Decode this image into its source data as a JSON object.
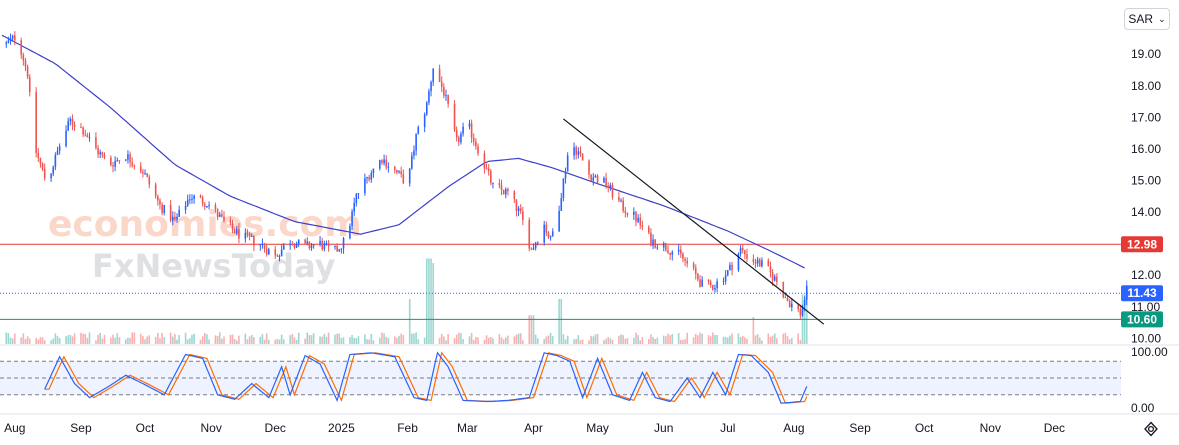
{
  "ui": {
    "currency": "SAR",
    "watermark_line1": "economies.com",
    "watermark_line2": "FxNewsToday",
    "colors": {
      "up": "#2962ff",
      "down": "#ef5350",
      "ma": "#3b3fc9",
      "resistance": "#e53935",
      "support": "#089981",
      "trendline": "#131722",
      "stoch_k": "#2962ff",
      "stoch_d": "#ff6d00"
    }
  },
  "chart_data": {
    "type": "candlestick",
    "x_ticks": [
      "Aug",
      "Sep",
      "Oct",
      "Nov",
      "Dec",
      "2025",
      "Feb",
      "Mar",
      "Apr",
      "May",
      "Jun",
      "Jul",
      "Aug",
      "Sep",
      "Oct",
      "Nov",
      "Dec"
    ],
    "y_ticks": [
      "19.00",
      "18.00",
      "17.00",
      "16.00",
      "15.00",
      "14.00",
      "12.00",
      "11.00",
      "10.00"
    ],
    "ylim": [
      9.6,
      20.4
    ],
    "price_levels": [
      {
        "value": "12.98",
        "color": "#e53935",
        "style": "solid"
      },
      {
        "value": "11.43",
        "color": "#2962ff",
        "style": "dotted"
      },
      {
        "value": "10.60",
        "color": "#089981",
        "style": "solid"
      }
    ],
    "trendline": {
      "start_date": "2025-04-15",
      "start_price": 16.95,
      "end_date": "2025-08-15",
      "end_price": 10.45
    },
    "price_anchors": [
      [
        "2024-07-26",
        19.2
      ],
      [
        "2024-08-02",
        19.6
      ],
      [
        "2024-08-07",
        18.4
      ],
      [
        "2024-08-10",
        16.1
      ],
      [
        "2024-08-16",
        14.9
      ],
      [
        "2024-08-22",
        16.1
      ],
      [
        "2024-08-27",
        16.9
      ],
      [
        "2024-09-02",
        16.6
      ],
      [
        "2024-09-08",
        16.0
      ],
      [
        "2024-09-14",
        15.5
      ],
      [
        "2024-09-22",
        15.8
      ],
      [
        "2024-09-30",
        15.3
      ],
      [
        "2024-10-08",
        14.2
      ],
      [
        "2024-10-15",
        13.7
      ],
      [
        "2024-10-22",
        14.5
      ],
      [
        "2024-10-30",
        14.3
      ],
      [
        "2024-11-08",
        13.6
      ],
      [
        "2024-11-16",
        13.2
      ],
      [
        "2024-11-24",
        13.0
      ],
      [
        "2024-12-01",
        12.6
      ],
      [
        "2024-12-08",
        13.1
      ],
      [
        "2024-12-15",
        12.9
      ],
      [
        "2024-12-22",
        13.0
      ],
      [
        "2024-12-28",
        12.7
      ],
      [
        "2025-01-03",
        13.1
      ],
      [
        "2025-01-08",
        14.5
      ],
      [
        "2025-01-14",
        15.2
      ],
      [
        "2025-01-20",
        15.7
      ],
      [
        "2025-01-26",
        15.3
      ],
      [
        "2025-02-01",
        14.9
      ],
      [
        "2025-02-05",
        16.4
      ],
      [
        "2025-02-10",
        17.4
      ],
      [
        "2025-02-13",
        18.6
      ],
      [
        "2025-02-18",
        17.8
      ],
      [
        "2025-02-24",
        16.2
      ],
      [
        "2025-03-01",
        16.8
      ],
      [
        "2025-03-06",
        16.0
      ],
      [
        "2025-03-13",
        14.8
      ],
      [
        "2025-03-20",
        14.6
      ],
      [
        "2025-03-26",
        13.9
      ],
      [
        "2025-03-31",
        12.8
      ],
      [
        "2025-04-06",
        13.6
      ],
      [
        "2025-04-09",
        13.1
      ],
      [
        "2025-04-13",
        14.2
      ],
      [
        "2025-04-18",
        16.2
      ],
      [
        "2025-04-22",
        15.9
      ],
      [
        "2025-04-27",
        15.2
      ],
      [
        "2025-05-05",
        14.9
      ],
      [
        "2025-05-12",
        14.2
      ],
      [
        "2025-05-19",
        13.8
      ],
      [
        "2025-05-26",
        13.1
      ],
      [
        "2025-06-02",
        12.9
      ],
      [
        "2025-06-09",
        12.6
      ],
      [
        "2025-06-15",
        12.1
      ],
      [
        "2025-06-20",
        11.6
      ],
      [
        "2025-06-25",
        11.7
      ],
      [
        "2025-07-01",
        12.1
      ],
      [
        "2025-07-07",
        12.8
      ],
      [
        "2025-07-12",
        12.5
      ],
      [
        "2025-07-18",
        12.3
      ],
      [
        "2025-07-24",
        11.8
      ],
      [
        "2025-07-29",
        11.2
      ],
      [
        "2025-08-04",
        10.8
      ],
      [
        "2025-08-07",
        11.5
      ]
    ],
    "ma_anchors": [
      [
        "2024-07-26",
        19.6
      ],
      [
        "2024-08-20",
        18.7
      ],
      [
        "2024-09-15",
        17.3
      ],
      [
        "2024-10-15",
        15.5
      ],
      [
        "2024-11-10",
        14.5
      ],
      [
        "2024-12-10",
        13.7
      ],
      [
        "2025-01-10",
        13.3
      ],
      [
        "2025-01-28",
        13.6
      ],
      [
        "2025-02-20",
        14.8
      ],
      [
        "2025-03-10",
        15.6
      ],
      [
        "2025-03-25",
        15.7
      ],
      [
        "2025-04-10",
        15.4
      ],
      [
        "2025-05-01",
        14.9
      ],
      [
        "2025-06-01",
        14.2
      ],
      [
        "2025-07-01",
        13.4
      ],
      [
        "2025-07-20",
        12.8
      ],
      [
        "2025-08-07",
        12.2
      ]
    ],
    "volume_spikes": [
      [
        "2025-02-01",
        0.5
      ],
      [
        "2025-02-11",
        0.95
      ],
      [
        "2025-02-14",
        0.9
      ],
      [
        "2025-03-31",
        0.32
      ],
      [
        "2025-04-13",
        0.5
      ],
      [
        "2025-07-12",
        0.3
      ],
      [
        "2025-08-06",
        0.55
      ]
    ],
    "stochastic_ylim": [
      0,
      100
    ],
    "stochastic_levels": [
      80,
      50,
      20
    ],
    "stochastic_ticks": [
      "100.00",
      "0.00"
    ],
    "stochastic_anchors": [
      [
        "2024-08-15",
        30
      ],
      [
        "2024-08-22",
        88
      ],
      [
        "2024-08-29",
        40
      ],
      [
        "2024-09-05",
        15
      ],
      [
        "2024-09-14",
        35
      ],
      [
        "2024-09-22",
        55
      ],
      [
        "2024-09-30",
        40
      ],
      [
        "2024-10-10",
        20
      ],
      [
        "2024-10-20",
        92
      ],
      [
        "2024-10-28",
        85
      ],
      [
        "2024-11-04",
        20
      ],
      [
        "2024-11-12",
        12
      ],
      [
        "2024-11-20",
        40
      ],
      [
        "2024-11-28",
        15
      ],
      [
        "2024-12-04",
        70
      ],
      [
        "2024-12-08",
        20
      ],
      [
        "2024-12-15",
        90
      ],
      [
        "2024-12-22",
        75
      ],
      [
        "2024-12-30",
        10
      ],
      [
        "2025-01-05",
        92
      ],
      [
        "2025-01-15",
        95
      ],
      [
        "2025-01-26",
        88
      ],
      [
        "2025-02-04",
        15
      ],
      [
        "2025-02-10",
        10
      ],
      [
        "2025-02-15",
        95
      ],
      [
        "2025-02-20",
        70
      ],
      [
        "2025-02-27",
        10
      ],
      [
        "2025-03-10",
        8
      ],
      [
        "2025-03-20",
        10
      ],
      [
        "2025-03-30",
        15
      ],
      [
        "2025-04-06",
        95
      ],
      [
        "2025-04-12",
        90
      ],
      [
        "2025-04-18",
        80
      ],
      [
        "2025-04-24",
        15
      ],
      [
        "2025-05-01",
        85
      ],
      [
        "2025-05-08",
        20
      ],
      [
        "2025-05-16",
        10
      ],
      [
        "2025-05-22",
        60
      ],
      [
        "2025-05-28",
        15
      ],
      [
        "2025-06-04",
        8
      ],
      [
        "2025-06-12",
        50
      ],
      [
        "2025-06-18",
        15
      ],
      [
        "2025-06-24",
        60
      ],
      [
        "2025-06-30",
        20
      ],
      [
        "2025-07-06",
        92
      ],
      [
        "2025-07-12",
        90
      ],
      [
        "2025-07-20",
        60
      ],
      [
        "2025-07-26",
        5
      ],
      [
        "2025-08-04",
        8
      ],
      [
        "2025-08-07",
        35
      ]
    ]
  }
}
